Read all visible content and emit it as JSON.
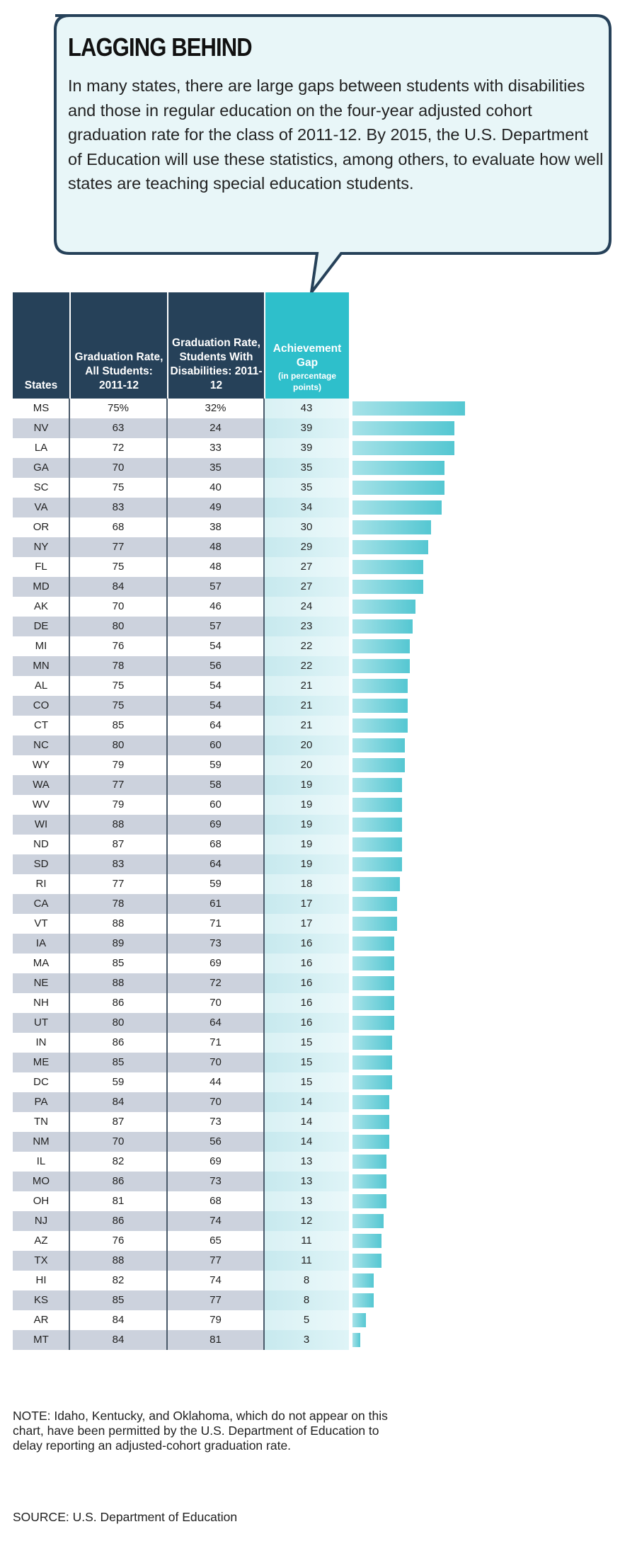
{
  "title": "LAGGING BEHIND",
  "intro": "In many states, there are large gaps between students with disabilities and those in regular education on the four-year adjusted cohort graduation rate for the class of 2011-12. By 2015, the U.S. Department of Education will use these statistics, among others, to evaluate how well states are teaching special education students.",
  "headers": {
    "states": "States",
    "all_students": "Graduation Rate, All Students: 2011-12",
    "disabilities": "Graduation Rate, Students With Disabilities: 2011-12",
    "gap": "Achievement Gap",
    "gap_sub": "(in percentage points)"
  },
  "note": "NOTE: Idaho, Kentucky, and Oklahoma, which do not appear on this chart, have been permitted by the U.S. Department of Education to delay reporting an adjusted-cohort graduation rate.",
  "source": "SOURCE: U.S. Department of Education",
  "colors": {
    "header_dark": "#264159",
    "header_teal": "#2ebfcb",
    "bar": "#55c7d2",
    "row_alt": "#ccd2dd"
  },
  "chart_data": {
    "type": "table",
    "columns": [
      "States",
      "Graduation Rate, All Students: 2011-12",
      "Graduation Rate, Students With Disabilities: 2011-12",
      "Achievement Gap (in percentage points)"
    ],
    "rows": [
      {
        "state": "MS",
        "all": "75%",
        "dis": "32%",
        "gap": 43
      },
      {
        "state": "NV",
        "all": "63",
        "dis": "24",
        "gap": 39
      },
      {
        "state": "LA",
        "all": "72",
        "dis": "33",
        "gap": 39
      },
      {
        "state": "GA",
        "all": "70",
        "dis": "35",
        "gap": 35
      },
      {
        "state": "SC",
        "all": "75",
        "dis": "40",
        "gap": 35
      },
      {
        "state": "VA",
        "all": "83",
        "dis": "49",
        "gap": 34
      },
      {
        "state": "OR",
        "all": "68",
        "dis": "38",
        "gap": 30
      },
      {
        "state": "NY",
        "all": "77",
        "dis": "48",
        "gap": 29
      },
      {
        "state": "FL",
        "all": "75",
        "dis": "48",
        "gap": 27
      },
      {
        "state": "MD",
        "all": "84",
        "dis": "57",
        "gap": 27
      },
      {
        "state": "AK",
        "all": "70",
        "dis": "46",
        "gap": 24
      },
      {
        "state": "DE",
        "all": "80",
        "dis": "57",
        "gap": 23
      },
      {
        "state": "MI",
        "all": "76",
        "dis": "54",
        "gap": 22
      },
      {
        "state": "MN",
        "all": "78",
        "dis": "56",
        "gap": 22
      },
      {
        "state": "AL",
        "all": "75",
        "dis": "54",
        "gap": 21
      },
      {
        "state": "CO",
        "all": "75",
        "dis": "54",
        "gap": 21
      },
      {
        "state": "CT",
        "all": "85",
        "dis": "64",
        "gap": 21
      },
      {
        "state": "NC",
        "all": "80",
        "dis": "60",
        "gap": 20
      },
      {
        "state": "WY",
        "all": "79",
        "dis": "59",
        "gap": 20
      },
      {
        "state": "WA",
        "all": "77",
        "dis": "58",
        "gap": 19
      },
      {
        "state": "WV",
        "all": "79",
        "dis": "60",
        "gap": 19
      },
      {
        "state": "WI",
        "all": "88",
        "dis": "69",
        "gap": 19
      },
      {
        "state": "ND",
        "all": "87",
        "dis": "68",
        "gap": 19
      },
      {
        "state": "SD",
        "all": "83",
        "dis": "64",
        "gap": 19
      },
      {
        "state": "RI",
        "all": "77",
        "dis": "59",
        "gap": 18
      },
      {
        "state": "CA",
        "all": "78",
        "dis": "61",
        "gap": 17
      },
      {
        "state": "VT",
        "all": "88",
        "dis": "71",
        "gap": 17
      },
      {
        "state": "IA",
        "all": "89",
        "dis": "73",
        "gap": 16
      },
      {
        "state": "MA",
        "all": "85",
        "dis": "69",
        "gap": 16
      },
      {
        "state": "NE",
        "all": "88",
        "dis": "72",
        "gap": 16
      },
      {
        "state": "NH",
        "all": "86",
        "dis": "70",
        "gap": 16
      },
      {
        "state": "UT",
        "all": "80",
        "dis": "64",
        "gap": 16
      },
      {
        "state": "IN",
        "all": "86",
        "dis": "71",
        "gap": 15
      },
      {
        "state": "ME",
        "all": "85",
        "dis": "70",
        "gap": 15
      },
      {
        "state": "DC",
        "all": "59",
        "dis": "44",
        "gap": 15
      },
      {
        "state": "PA",
        "all": "84",
        "dis": "70",
        "gap": 14
      },
      {
        "state": "TN",
        "all": "87",
        "dis": "73",
        "gap": 14
      },
      {
        "state": "NM",
        "all": "70",
        "dis": "56",
        "gap": 14
      },
      {
        "state": "IL",
        "all": "82",
        "dis": "69",
        "gap": 13
      },
      {
        "state": "MO",
        "all": "86",
        "dis": "73",
        "gap": 13
      },
      {
        "state": "OH",
        "all": "81",
        "dis": "68",
        "gap": 13
      },
      {
        "state": "NJ",
        "all": "86",
        "dis": "74",
        "gap": 12
      },
      {
        "state": "AZ",
        "all": "76",
        "dis": "65",
        "gap": 11
      },
      {
        "state": "TX",
        "all": "88",
        "dis": "77",
        "gap": 11
      },
      {
        "state": "HI",
        "all": "82",
        "dis": "74",
        "gap": 8
      },
      {
        "state": "KS",
        "all": "85",
        "dis": "77",
        "gap": 8
      },
      {
        "state": "AR",
        "all": "84",
        "dis": "79",
        "gap": 5
      },
      {
        "state": "MT",
        "all": "84",
        "dis": "81",
        "gap": 3
      }
    ]
  }
}
